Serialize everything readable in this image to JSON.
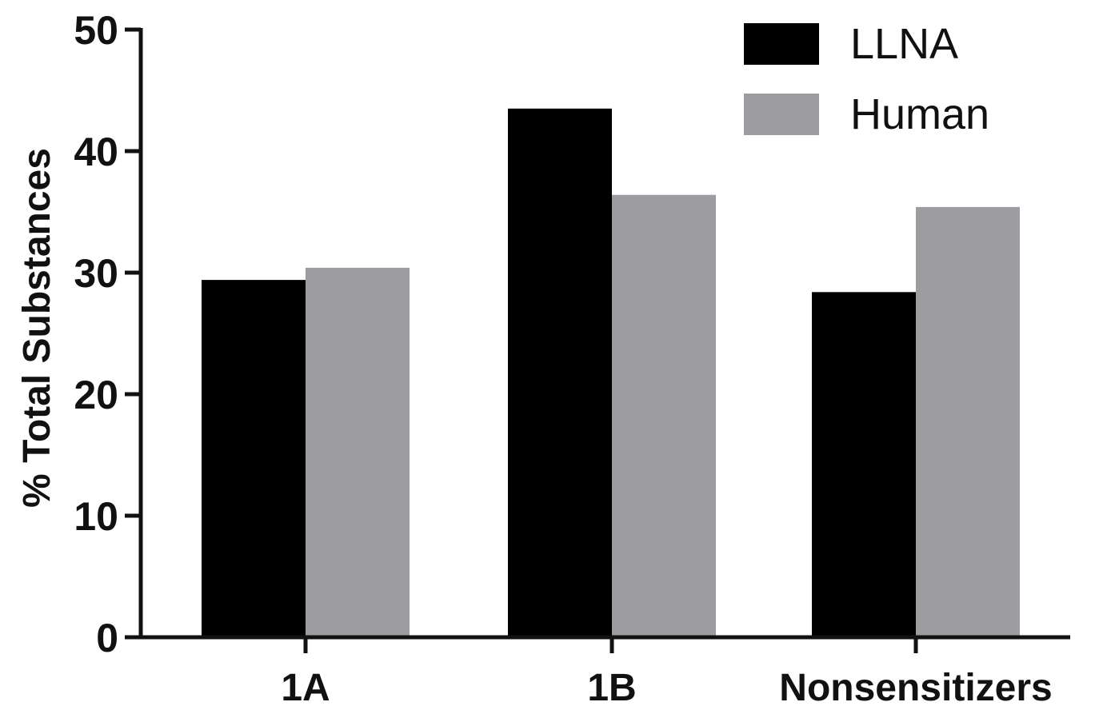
{
  "chart_data": {
    "type": "bar",
    "categories": [
      "1A",
      "1B",
      "Nonsensitizers"
    ],
    "series": [
      {
        "name": "LLNA",
        "values": [
          29.4,
          43.5,
          28.4
        ],
        "color": "#000000"
      },
      {
        "name": "Human",
        "values": [
          30.4,
          36.4,
          35.4
        ],
        "color": "#9d9ca1"
      }
    ],
    "title": "",
    "xlabel": "",
    "ylabel": "% Total Substances",
    "ylim": [
      0,
      50
    ],
    "yticks": [
      "0",
      "10",
      "20",
      "30",
      "40",
      "50"
    ],
    "grid": false,
    "legend_position": "top-right"
  }
}
